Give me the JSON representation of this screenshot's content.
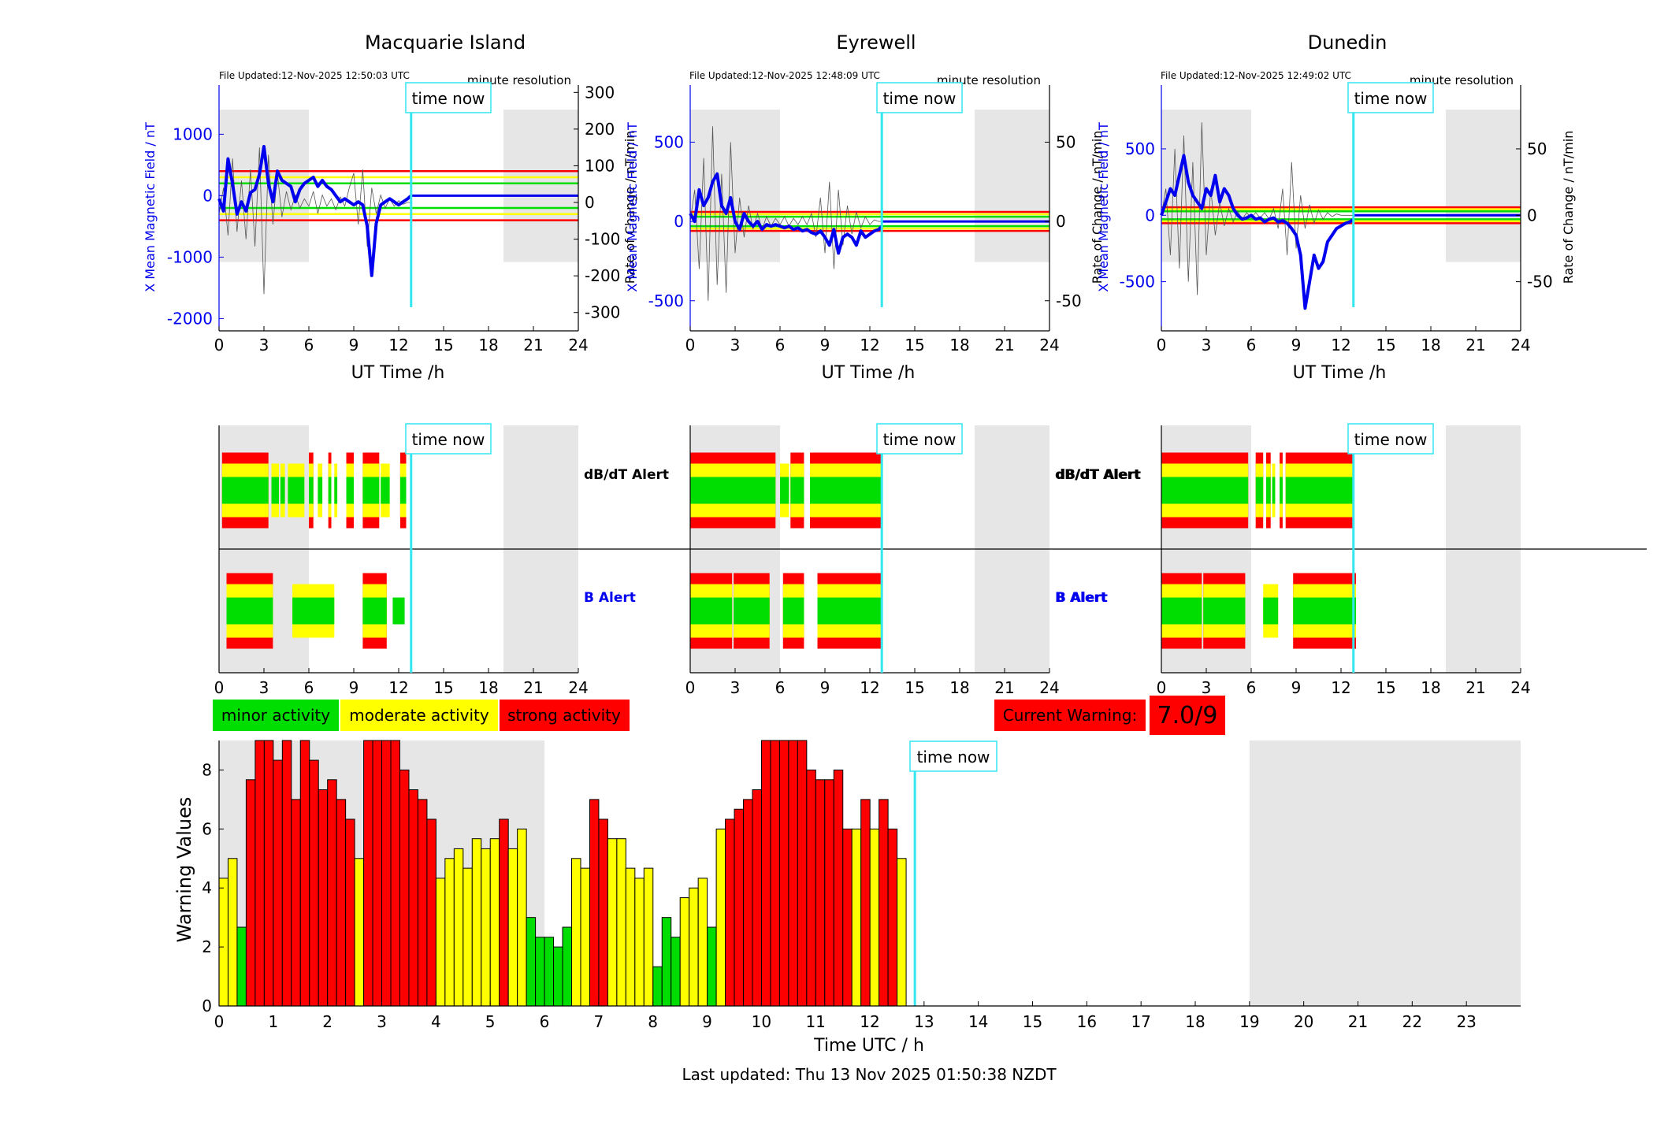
{
  "stations": [
    {
      "title": "Macquarie Island",
      "file_updated": "File Updated:12-Nov-2025 12:50:03 UTC",
      "resolution": "minute resolution",
      "time_now_label": "time now",
      "ylabel_left": "X Mean Magnetic Field / nT",
      "ylabel_right": "Rate of Change / nT/min",
      "xlabel": "UT Time /h",
      "xticks": [
        "0",
        "3",
        "6",
        "9",
        "12",
        "15",
        "18",
        "21",
        "24"
      ],
      "yticks_left": [
        "1000",
        "0",
        "-1000",
        "-2000"
      ],
      "yticks_left_values": [
        1000,
        0,
        -1000,
        -2000
      ],
      "ylim_left": [
        -2200,
        1800
      ],
      "yticks_right": [
        "300",
        "200",
        "100",
        "0",
        "-100",
        "-200",
        "-300"
      ],
      "yticks_right_values": [
        300,
        200,
        100,
        0,
        -100,
        -200,
        -300
      ],
      "ylim_right": [
        -350,
        320
      ],
      "thresholds_nT": {
        "red": 400,
        "yellow": 300,
        "green": 200
      },
      "dbdt_alert_label": "dB/dT Alert",
      "b_alert_label": "B Alert"
    },
    {
      "title": "Eyrewell",
      "file_updated": "File Updated:12-Nov-2025 12:48:09 UTC",
      "resolution": "minute resolution",
      "time_now_label": "time now",
      "ylabel_left": "X Mean Magnetic Field / nT",
      "ylabel_right": "Rate of Change / nT/min",
      "xlabel": "UT Time /h",
      "xticks": [
        "0",
        "3",
        "6",
        "9",
        "12",
        "15",
        "18",
        "21",
        "24"
      ],
      "yticks_left": [
        "500",
        "0",
        "-500"
      ],
      "yticks_left_values": [
        500,
        0,
        -500
      ],
      "ylim_left": [
        -690,
        860
      ],
      "yticks_right": [
        "50",
        "0",
        "-50"
      ],
      "yticks_right_values": [
        50,
        0,
        -50
      ],
      "ylim_right": [
        -69,
        86
      ],
      "thresholds_nT": {
        "red": 60,
        "yellow": 45,
        "green": 30
      },
      "dbdt_alert_label": "dB/dT Alert",
      "b_alert_label": "B Alert"
    },
    {
      "title": "Dunedin",
      "file_updated": "File Updated:12-Nov-2025 12:49:02 UTC",
      "resolution": "minute resolution",
      "time_now_label": "time now",
      "ylabel_left": "X Mean Magnetic Field / nT",
      "ylabel_right": "Rate of Change / nT/min",
      "xlabel": "UT Time /h",
      "xticks": [
        "0",
        "3",
        "6",
        "9",
        "12",
        "15",
        "18",
        "21",
        "24"
      ],
      "yticks_left": [
        "500",
        "0",
        "-500"
      ],
      "yticks_left_values": [
        500,
        0,
        -500
      ],
      "ylim_left": [
        -870,
        980
      ],
      "yticks_right": [
        "50",
        "0",
        "-50"
      ],
      "yticks_right_values": [
        50,
        0,
        -50
      ],
      "ylim_right": [
        -87,
        98
      ],
      "thresholds_nT": {
        "red": 60,
        "yellow": 45,
        "green": 30
      },
      "dbdt_alert_label": "dB/dT Alert",
      "b_alert_label": "B Alert"
    }
  ],
  "legend": {
    "minor": "minor activity",
    "moderate": "moderate activity",
    "strong": "strong activity"
  },
  "current_warning": {
    "label": "Current Warning:",
    "value": "7.0/9"
  },
  "warning_chart": {
    "time_now_label": "time now",
    "ylabel": "Warning Values",
    "xlabel": "Time UTC / h",
    "xticks": [
      "0",
      "1",
      "2",
      "3",
      "4",
      "5",
      "6",
      "7",
      "8",
      "9",
      "10",
      "11",
      "12",
      "13",
      "14",
      "15",
      "16",
      "17",
      "18",
      "19",
      "20",
      "21",
      "22",
      "23"
    ],
    "yticks": [
      "0",
      "2",
      "4",
      "6",
      "8"
    ]
  },
  "footer": {
    "last_updated": "Last updated: Thu 13 Nov 2025 01:50:38 NZDT"
  },
  "colors": {
    "minor": "#00dd00",
    "moderate": "#ffff00",
    "strong": "#ff0000",
    "time_now": "#33e6f0",
    "field_trace": "#0000ee",
    "night_shade": "#e6e6e6"
  },
  "chart_data": [
    {
      "type": "line",
      "title": "Macquarie Island",
      "xlabel": "UT Time /h",
      "ylabel": "X Mean Magnetic Field / nT",
      "xlim": [
        0,
        24
      ],
      "time_now_h": 12.83,
      "night_shading_h": [
        [
          0,
          6
        ],
        [
          19,
          24
        ]
      ],
      "x_hours": [
        0,
        0.3,
        0.6,
        0.9,
        1.2,
        1.5,
        1.8,
        2.1,
        2.4,
        2.7,
        3.0,
        3.3,
        3.6,
        3.9,
        4.2,
        4.5,
        4.8,
        5.1,
        5.4,
        5.7,
        6.0,
        6.3,
        6.6,
        6.9,
        7.2,
        7.5,
        7.8,
        8.1,
        8.4,
        8.7,
        9.0,
        9.3,
        9.6,
        9.9,
        10.2,
        10.5,
        10.8,
        11.1,
        11.4,
        11.7,
        12.0,
        12.3,
        12.6,
        12.83
      ],
      "x_mean_field_nT": [
        -50,
        -250,
        600,
        200,
        -300,
        -100,
        -250,
        50,
        100,
        350,
        800,
        200,
        -100,
        400,
        250,
        200,
        150,
        -100,
        100,
        200,
        250,
        300,
        150,
        250,
        150,
        100,
        0,
        -100,
        -50,
        -100,
        -150,
        -100,
        -150,
        -500,
        -1300,
        -450,
        -150,
        -100,
        -50,
        -100,
        -150,
        -100,
        -50,
        0
      ],
      "rate_of_change_nT_per_min": [
        -30,
        40,
        -90,
        120,
        -80,
        60,
        -100,
        90,
        -120,
        150,
        -250,
        130,
        -60,
        80,
        -40,
        30,
        -20,
        20,
        -15,
        10,
        -10,
        30,
        -30,
        20,
        -10,
        10,
        -20,
        15,
        -10,
        40,
        80,
        -60,
        90,
        -120,
        40,
        -30,
        20,
        -15,
        10,
        -10,
        5,
        -5,
        0,
        0
      ]
    },
    {
      "type": "line",
      "title": "Eyrewell",
      "xlabel": "UT Time /h",
      "ylabel": "X Mean Magnetic Field / nT",
      "xlim": [
        0,
        24
      ],
      "time_now_h": 12.8,
      "night_shading_h": [
        [
          0,
          6
        ],
        [
          19,
          24
        ]
      ],
      "x_hours": [
        0,
        0.3,
        0.6,
        0.9,
        1.2,
        1.5,
        1.8,
        2.1,
        2.4,
        2.7,
        3.0,
        3.3,
        3.6,
        3.9,
        4.2,
        4.5,
        4.8,
        5.1,
        5.4,
        5.7,
        6.0,
        6.3,
        6.6,
        6.9,
        7.2,
        7.5,
        7.8,
        8.1,
        8.4,
        8.7,
        9.0,
        9.3,
        9.6,
        9.9,
        10.2,
        10.5,
        10.8,
        11.1,
        11.4,
        11.7,
        12.0,
        12.3,
        12.6,
        12.8
      ],
      "x_mean_field_nT": [
        50,
        0,
        200,
        100,
        150,
        250,
        300,
        100,
        50,
        150,
        0,
        -50,
        50,
        0,
        -30,
        0,
        -50,
        -20,
        -30,
        -20,
        -30,
        -40,
        -30,
        -50,
        -40,
        -60,
        -50,
        -70,
        -80,
        -60,
        -100,
        -150,
        -50,
        -200,
        -100,
        -80,
        -100,
        -150,
        -60,
        -100,
        -80,
        -60,
        -50,
        -30
      ],
      "rate_of_change_nT_per_min": [
        0,
        20,
        -30,
        40,
        -50,
        60,
        -40,
        30,
        -45,
        50,
        -20,
        15,
        -10,
        10,
        -5,
        5,
        -5,
        3,
        -3,
        2,
        -2,
        3,
        -3,
        2,
        -2,
        3,
        -2,
        5,
        -10,
        15,
        -20,
        25,
        -30,
        20,
        -15,
        10,
        -8,
        6,
        -4,
        3,
        -2,
        1,
        0,
        0
      ]
    },
    {
      "type": "line",
      "title": "Dunedin",
      "xlabel": "UT Time /h",
      "ylabel": "X Mean Magnetic Field / nT",
      "xlim": [
        0,
        24
      ],
      "time_now_h": 12.83,
      "night_shading_h": [
        [
          0,
          6
        ],
        [
          19,
          24
        ]
      ],
      "x_hours": [
        0,
        0.3,
        0.6,
        0.9,
        1.2,
        1.5,
        1.8,
        2.1,
        2.4,
        2.7,
        3.0,
        3.3,
        3.6,
        3.9,
        4.2,
        4.5,
        4.8,
        5.1,
        5.4,
        5.7,
        6.0,
        6.3,
        6.6,
        6.9,
        7.2,
        7.5,
        7.8,
        8.1,
        8.4,
        8.7,
        9.0,
        9.3,
        9.6,
        9.9,
        10.2,
        10.5,
        10.8,
        11.1,
        11.4,
        11.7,
        12.0,
        12.3,
        12.6,
        12.83
      ],
      "x_mean_field_nT": [
        0,
        100,
        200,
        150,
        300,
        450,
        250,
        150,
        100,
        50,
        200,
        150,
        300,
        100,
        200,
        150,
        50,
        0,
        -30,
        -20,
        0,
        -30,
        -20,
        -50,
        -30,
        -20,
        -50,
        -40,
        -60,
        -100,
        -150,
        -300,
        -700,
        -500,
        -300,
        -400,
        -350,
        -200,
        -150,
        -100,
        -80,
        -60,
        -50,
        -30
      ],
      "rate_of_change_nT_per_min": [
        0,
        20,
        -30,
        50,
        -40,
        60,
        -50,
        40,
        -60,
        70,
        -30,
        20,
        -15,
        10,
        -8,
        5,
        -5,
        3,
        -3,
        2,
        -2,
        2,
        -2,
        2,
        -3,
        5,
        -10,
        20,
        -30,
        40,
        -25,
        15,
        -10,
        8,
        -6,
        4,
        -3,
        2,
        -1,
        1,
        0,
        0,
        0,
        0
      ]
    },
    {
      "type": "bar",
      "title": "",
      "xlabel": "Time UTC / h",
      "ylabel": "Warning Values",
      "ylim": [
        0,
        9
      ],
      "xlim": [
        0,
        24
      ],
      "time_now_h": 12.83,
      "night_shading_h": [
        [
          0,
          6
        ],
        [
          19,
          24
        ]
      ],
      "bin_hours": 0.1667,
      "values": [
        4.33,
        5.0,
        2.67,
        7.67,
        9.0,
        9.0,
        8.33,
        9.0,
        7.0,
        9.0,
        8.33,
        7.33,
        7.67,
        7.0,
        6.33,
        5.0,
        9.0,
        9.0,
        9.0,
        9.0,
        8.0,
        7.33,
        7.0,
        6.33,
        4.33,
        5.0,
        5.33,
        4.67,
        5.67,
        5.33,
        5.67,
        6.33,
        5.33,
        6.0,
        3.0,
        2.33,
        2.33,
        2.0,
        2.67,
        5.0,
        4.67,
        7.0,
        6.33,
        5.67,
        5.67,
        4.67,
        4.33,
        4.67,
        1.33,
        3.0,
        2.33,
        3.67,
        4.0,
        4.33,
        2.67,
        6.0,
        6.33,
        6.67,
        7.0,
        7.33,
        9.0,
        9.0,
        9.0,
        9.0,
        9.0,
        8.0,
        7.67,
        7.67,
        8.0,
        6.0,
        6.0,
        7.0,
        6.0,
        7.0,
        6.0,
        5.0
      ],
      "colors": [
        "yellow",
        "yellow",
        "green",
        "red",
        "red",
        "red",
        "red",
        "red",
        "red",
        "red",
        "red",
        "red",
        "red",
        "red",
        "red",
        "yellow",
        "red",
        "red",
        "red",
        "red",
        "red",
        "red",
        "red",
        "red",
        "yellow",
        "yellow",
        "yellow",
        "yellow",
        "yellow",
        "yellow",
        "yellow",
        "red",
        "yellow",
        "yellow",
        "green",
        "green",
        "green",
        "green",
        "green",
        "yellow",
        "yellow",
        "red",
        "red",
        "yellow",
        "yellow",
        "yellow",
        "yellow",
        "yellow",
        "green",
        "green",
        "green",
        "yellow",
        "yellow",
        "yellow",
        "green",
        "yellow",
        "red",
        "red",
        "red",
        "red",
        "red",
        "red",
        "red",
        "red",
        "red",
        "red",
        "red",
        "red",
        "red",
        "red",
        "yellow",
        "red",
        "yellow",
        "red",
        "red",
        "yellow"
      ]
    }
  ],
  "alert_data": [
    {
      "dbdt_segments_h": [
        [
          0.2,
          3.3,
          "red"
        ],
        [
          3.5,
          4.0,
          "yellow"
        ],
        [
          4.1,
          4.4,
          "yellow"
        ],
        [
          4.6,
          5.7,
          "yellow"
        ],
        [
          6.0,
          6.3,
          "red"
        ],
        [
          6.6,
          6.9,
          "yellow"
        ],
        [
          7.3,
          7.5,
          "red"
        ],
        [
          7.7,
          7.9,
          "yellow"
        ],
        [
          8.5,
          9.0,
          "red"
        ],
        [
          9.6,
          10.7,
          "red"
        ],
        [
          10.8,
          11.4,
          "yellow"
        ],
        [
          12.1,
          12.5,
          "red"
        ]
      ],
      "b_segments_h": [
        [
          0.5,
          3.6,
          "red"
        ],
        [
          4.9,
          7.7,
          "yellow"
        ],
        [
          9.6,
          11.2,
          "red"
        ],
        [
          11.6,
          12.4,
          "green"
        ]
      ]
    },
    {
      "dbdt_segments_h": [
        [
          0,
          5.7,
          "red"
        ],
        [
          6.0,
          6.6,
          "yellow"
        ],
        [
          6.7,
          7.6,
          "red"
        ],
        [
          8.0,
          12.8,
          "red"
        ]
      ],
      "b_segments_h": [
        [
          0,
          2.8,
          "red"
        ],
        [
          2.9,
          5.3,
          "red"
        ],
        [
          6.2,
          7.6,
          "red"
        ],
        [
          8.5,
          12.8,
          "red"
        ]
      ]
    },
    {
      "dbdt_segments_h": [
        [
          0,
          5.8,
          "red"
        ],
        [
          6.3,
          6.8,
          "red"
        ],
        [
          7.0,
          7.3,
          "red"
        ],
        [
          7.4,
          7.6,
          "yellow"
        ],
        [
          7.9,
          8.1,
          "red"
        ],
        [
          8.3,
          12.8,
          "red"
        ]
      ],
      "b_segments_h": [
        [
          0,
          2.7,
          "red"
        ],
        [
          2.8,
          5.6,
          "red"
        ],
        [
          6.8,
          7.8,
          "yellow"
        ],
        [
          8.8,
          13.0,
          "red"
        ]
      ]
    }
  ]
}
